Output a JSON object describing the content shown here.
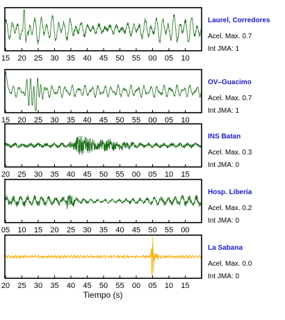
{
  "chart_data": {
    "type": "line",
    "xlabel": "Tiempo (s)",
    "panels": [
      {
        "station": "Laurel, Corredores",
        "accel_label": "Acel. Max. 0.7",
        "jma_label": "Int JMA: 1",
        "color": "#1a6e1a",
        "tick_labels": [
          "15",
          "20",
          "25",
          "30",
          "35",
          "40",
          "45",
          "50",
          "55",
          "00",
          "05",
          "10"
        ],
        "style": "regional",
        "burst_at": 0.45,
        "amplitude": 0.8
      },
      {
        "station": "OV–Guacimo",
        "accel_label": "Acel. Max. 0.7",
        "jma_label": "Int JMA: 1",
        "color": "#1a6e1a",
        "tick_labels": [
          "15",
          "20",
          "25",
          "30",
          "35",
          "40",
          "45",
          "50",
          "55",
          "00",
          "05",
          "10"
        ],
        "style": "spiky",
        "burst_at": 0.15,
        "amplitude": 0.55
      },
      {
        "station": "INS Batan",
        "accel_label": "Acel. Max. 0.3",
        "jma_label": "Int JMA: 0",
        "color": "#1a6e1a",
        "tick_labels": [
          "20",
          "25",
          "30",
          "35",
          "40",
          "45",
          "50",
          "55",
          "00",
          "05",
          "10",
          "15"
        ],
        "style": "noisy",
        "burst_at": 0.4,
        "amplitude": 0.5
      },
      {
        "station": "Hosp. Liberia",
        "accel_label": "Acel. Max. 0.2",
        "jma_label": "Int JMA: 0",
        "color": "#1a6e1a",
        "tick_labels": [
          "05",
          "10",
          "15",
          "20",
          "25",
          "30",
          "35",
          "40",
          "45",
          "50",
          "55",
          "00"
        ],
        "style": "noisy-wide",
        "burst_at": 0.33,
        "amplitude": 0.5
      },
      {
        "station": "La Sabana",
        "accel_label": "Acel. Max. 0.0",
        "jma_label": "Int JMA: 0",
        "color": "#f5a800",
        "tick_labels": [
          "20",
          "25",
          "30",
          "35",
          "40",
          "45",
          "50",
          "55",
          "00",
          "05",
          "10",
          "15"
        ],
        "style": "quiet-spike",
        "burst_at": 0.75,
        "amplitude": 0.85
      }
    ]
  }
}
